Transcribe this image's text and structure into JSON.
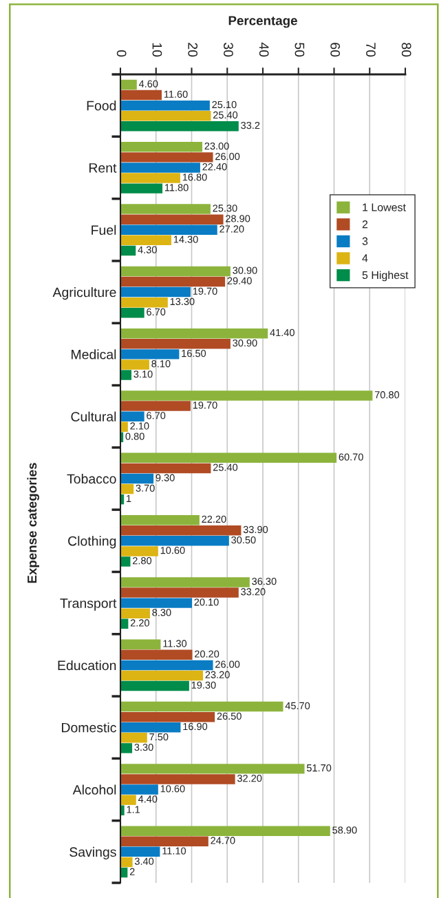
{
  "chart_data": {
    "type": "bar",
    "orientation": "horizontal",
    "xlabel": "Percentage",
    "ylabel": "Expense categories",
    "categories": [
      "Food",
      "Rent",
      "Fuel",
      "Agriculture",
      "Medical",
      "Cultural",
      "Tobacco",
      "Clothing",
      "Transport",
      "Education",
      "Domestic",
      "Alcohol",
      "Savings"
    ],
    "series": [
      {
        "name": "1 Lowest",
        "color": "#8cb43c",
        "values": [
          4.6,
          23.0,
          25.3,
          30.9,
          41.4,
          70.8,
          60.7,
          22.2,
          36.3,
          11.3,
          45.7,
          51.7,
          58.9
        ],
        "value_labels": [
          "4.60",
          "23.00",
          "25.30",
          "30.90",
          "41.40",
          "70.80",
          "60.70",
          "22.20",
          "36.30",
          "11.30",
          "45.70",
          "51.70",
          "58.90"
        ]
      },
      {
        "name": "2",
        "color": "#b04b24",
        "values": [
          11.6,
          26.0,
          28.9,
          29.4,
          30.9,
          19.7,
          25.4,
          33.9,
          33.2,
          20.2,
          26.5,
          32.2,
          24.7
        ],
        "value_labels": [
          "11.60",
          "26.00",
          "28.90",
          "29.40",
          "30.90",
          "19.70",
          "25.40",
          "33.90",
          "33.20",
          "20.20",
          "26.50",
          "32.20",
          "24.70"
        ]
      },
      {
        "name": "3",
        "color": "#0a7cc4",
        "values": [
          25.1,
          22.4,
          27.2,
          19.7,
          16.5,
          6.7,
          9.3,
          30.5,
          20.1,
          26.0,
          16.9,
          10.6,
          11.1
        ],
        "value_labels": [
          "25.10",
          "22.40",
          "27.20",
          "19.70",
          "16.50",
          "6.70",
          "9.30",
          "30.50",
          "20.10",
          "26.00",
          "16.90",
          "10.60",
          "11.10"
        ]
      },
      {
        "name": "4",
        "color": "#dcb414",
        "values": [
          25.4,
          16.8,
          14.3,
          13.3,
          8.1,
          2.1,
          3.7,
          10.6,
          8.3,
          23.2,
          7.5,
          4.4,
          3.4
        ],
        "value_labels": [
          "25.40",
          "16.80",
          "14.30",
          "13.30",
          "8.10",
          "2.10",
          "3.70",
          "10.60",
          "8.30",
          "23.20",
          "7.50",
          "4.40",
          "3.40"
        ]
      },
      {
        "name": "5 Highest",
        "color": "#008c4a",
        "values": [
          33.2,
          11.8,
          4.3,
          6.7,
          3.1,
          0.8,
          1,
          2.8,
          2.2,
          19.3,
          3.3,
          1.1,
          2
        ],
        "value_labels": [
          "33.2",
          "11.80",
          "4.30",
          "6.70",
          "3.10",
          "0.80",
          "1",
          "2.80",
          "2.20",
          "19.30",
          "3.30",
          "1.1",
          "2"
        ]
      }
    ],
    "xlim": [
      0,
      80
    ],
    "xticks": [
      0,
      10,
      20,
      30,
      40,
      50,
      60,
      70,
      80
    ],
    "grid": "x",
    "legend": "top right"
  }
}
